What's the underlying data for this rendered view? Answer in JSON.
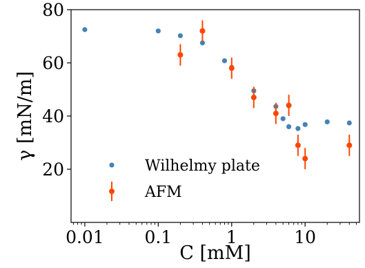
{
  "chart_data": {
    "type": "scatter",
    "xlabel": "C [mM]",
    "ylabel": "γ [mN/m]",
    "xscale": "log",
    "xlim": [
      0.0065,
      55
    ],
    "ylim": [
      0,
      80
    ],
    "xticks": [
      0.01,
      0.1,
      1,
      10
    ],
    "xtick_labels": [
      "0.01",
      "0.1",
      "1",
      "10"
    ],
    "yticks": [
      20,
      40,
      60,
      80
    ],
    "ytick_labels": [
      "20",
      "40",
      "60",
      "80"
    ],
    "legend_position": "lower-left",
    "series": [
      {
        "name": "Wilhelmy plate",
        "color": "#4682b4",
        "marker": "circle",
        "points": [
          {
            "x": 0.01,
            "y": 72.5
          },
          {
            "x": 0.1,
            "y": 72.0
          },
          {
            "x": 0.2,
            "y": 70.2
          },
          {
            "x": 0.4,
            "y": 67.5
          },
          {
            "x": 0.8,
            "y": 60.8
          },
          {
            "x": 1.0,
            "y": 58.3
          },
          {
            "x": 2.0,
            "y": 49.5
          },
          {
            "x": 4.0,
            "y": 43.6
          },
          {
            "x": 5.0,
            "y": 39.0
          },
          {
            "x": 6.0,
            "y": 36.0
          },
          {
            "x": 8.0,
            "y": 35.3
          },
          {
            "x": 10.0,
            "y": 36.8
          },
          {
            "x": 20.0,
            "y": 37.8
          },
          {
            "x": 40.0,
            "y": 37.4
          }
        ]
      },
      {
        "name": "AFM",
        "color": "#ff4500",
        "marker": "circle-errorbar",
        "points": [
          {
            "x": 0.2,
            "y": 63.0,
            "err": 4.0
          },
          {
            "x": 0.4,
            "y": 72.0,
            "err": 4.0
          },
          {
            "x": 1.0,
            "y": 58.0,
            "err": 4.0
          },
          {
            "x": 2.0,
            "y": 47.0,
            "err": 4.0
          },
          {
            "x": 4.0,
            "y": 41.0,
            "err": 4.0
          },
          {
            "x": 6.0,
            "y": 44.0,
            "err": 4.0
          },
          {
            "x": 8.0,
            "y": 29.0,
            "err": 4.0
          },
          {
            "x": 10.0,
            "y": 24.0,
            "err": 4.0
          },
          {
            "x": 40.0,
            "y": 29.0,
            "err": 4.0
          }
        ]
      }
    ]
  }
}
